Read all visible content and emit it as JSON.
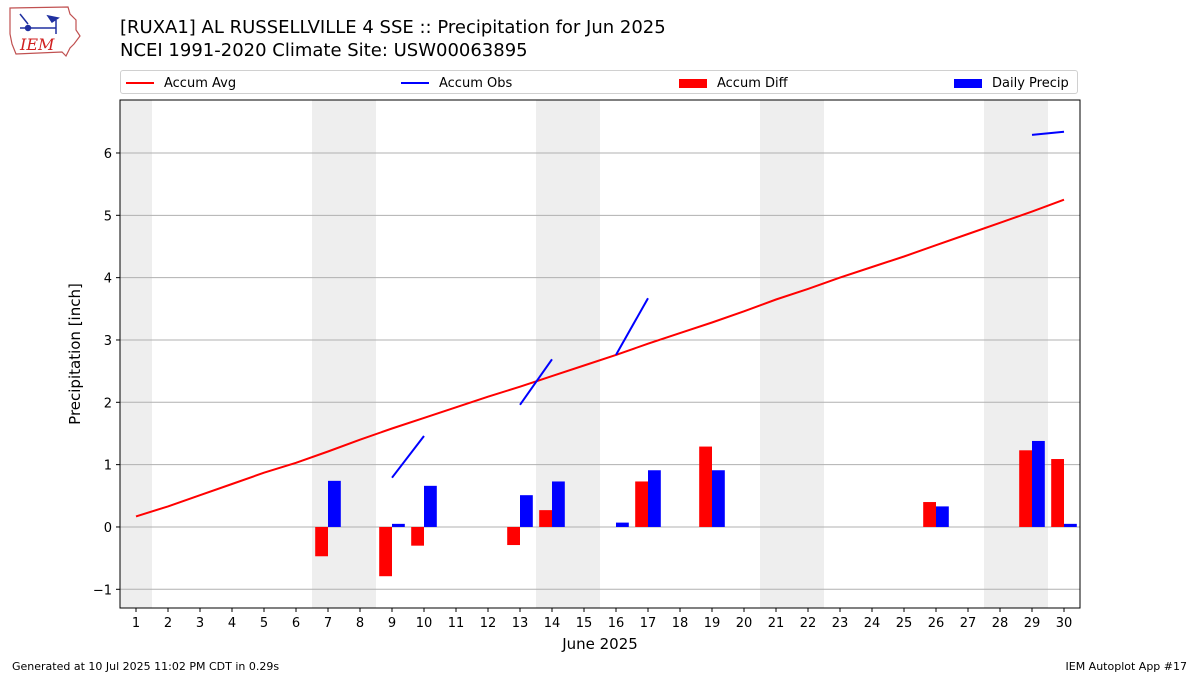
{
  "header": {
    "title_line1": "[RUXA1] AL RUSSELLVILLE 4 SSE :: Precipitation for Jun 2025",
    "title_line2": "NCEI 1991-2020 Climate Site: USW00063895"
  },
  "logo": {
    "text": "IEM"
  },
  "footer": {
    "generated": "Generated at 10 Jul 2025 11:02 PM CDT in 0.29s",
    "app": "IEM Autoplot App #17"
  },
  "chart_data": {
    "type": "bar",
    "title": "[RUXA1] AL RUSSELLVILLE 4 SSE :: Precipitation for Jun 2025",
    "xlabel": "June 2025",
    "ylabel": "Precipitation [inch]",
    "ylim": [
      -1.3,
      6.85
    ],
    "xlim": [
      0.5,
      30.5
    ],
    "yticks": [
      -1,
      0,
      1,
      2,
      3,
      4,
      5,
      6
    ],
    "categories": [
      1,
      2,
      3,
      4,
      5,
      6,
      7,
      8,
      9,
      10,
      11,
      12,
      13,
      14,
      15,
      16,
      17,
      18,
      19,
      20,
      21,
      22,
      23,
      24,
      25,
      26,
      27,
      28,
      29,
      30
    ],
    "grid": "horizontal",
    "legend_position": "top",
    "weekend_shading_days": [
      1,
      7,
      8,
      14,
      15,
      21,
      22,
      28,
      29
    ],
    "colors": {
      "avg": "#ff0000",
      "obs": "#0000ff",
      "diff": "#ff0000",
      "daily": "#0000ff",
      "shade": "#eeeeee",
      "grid": "#b0b0b0"
    },
    "series": [
      {
        "name": "Accum Avg",
        "kind": "line",
        "color": "#ff0000",
        "values": [
          0.17,
          0.33,
          0.51,
          0.69,
          0.87,
          1.03,
          1.21,
          1.4,
          1.58,
          1.75,
          1.92,
          2.09,
          2.25,
          2.42,
          2.59,
          2.76,
          2.94,
          3.11,
          3.28,
          3.46,
          3.65,
          3.82,
          4.0,
          4.17,
          4.34,
          4.52,
          4.7,
          4.88,
          5.06,
          5.25
        ]
      },
      {
        "name": "Accum Obs",
        "kind": "line",
        "color": "#0000ff",
        "values": [
          null,
          null,
          null,
          null,
          null,
          null,
          null,
          null,
          0.79,
          1.46,
          null,
          null,
          1.96,
          2.69,
          null,
          2.76,
          3.67,
          null,
          null,
          null,
          null,
          null,
          null,
          null,
          null,
          null,
          null,
          null,
          6.29,
          6.34
        ]
      },
      {
        "name": "Accum Diff",
        "kind": "bar",
        "color": "#ff0000",
        "values": [
          0,
          0,
          0,
          0,
          0,
          0,
          -0.47,
          0,
          -0.79,
          -0.3,
          0,
          0,
          -0.29,
          0.27,
          0,
          0,
          0.73,
          0,
          1.29,
          0,
          0,
          0,
          0,
          0,
          0,
          0.4,
          0,
          0,
          1.23,
          1.09
        ]
      },
      {
        "name": "Daily Precip",
        "kind": "bar",
        "color": "#0000ff",
        "values": [
          0,
          0,
          0,
          0,
          0,
          0,
          0.74,
          0,
          0.05,
          0.66,
          0,
          0,
          0.51,
          0.73,
          0,
          0.07,
          0.91,
          0,
          0.91,
          0,
          0,
          0,
          0,
          0,
          0,
          0.33,
          0,
          0,
          1.38,
          0.05
        ]
      }
    ]
  }
}
